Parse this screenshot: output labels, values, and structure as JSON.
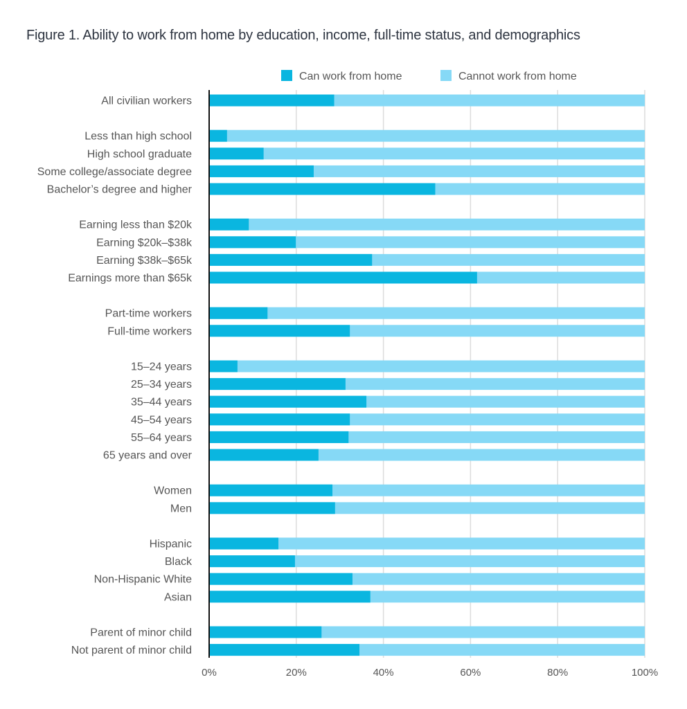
{
  "chart_data": {
    "type": "bar",
    "stacked": true,
    "orientation": "horizontal",
    "title": "Figure 1. Ability to work from home by education, income, full-time status, and demographics",
    "xlim": [
      0,
      100
    ],
    "xticks": [
      "0%",
      "20%",
      "40%",
      "60%",
      "80%",
      "100%"
    ],
    "grid": true,
    "legend_position": "top",
    "colors": {
      "can": "#0ab6e0",
      "cannot": "#86d9f6"
    },
    "series": [
      {
        "name": "Can work from home"
      },
      {
        "name": "Cannot work from home"
      }
    ],
    "groups": [
      [
        {
          "label": "All civilian workers",
          "value": 28.7
        }
      ],
      [
        {
          "label": "Less than high school",
          "value": 4.1
        },
        {
          "label": "High school graduate",
          "value": 12.5
        },
        {
          "label": "Some college/associate degree",
          "value": 24.0
        },
        {
          "label": "Bachelor’s degree and higher",
          "value": 51.9
        }
      ],
      [
        {
          "label": "Earning less than $20k",
          "value": 9.1
        },
        {
          "label": "Earning $20k–$38k",
          "value": 19.9
        },
        {
          "label": "Earning $38k–$65k",
          "value": 37.4
        },
        {
          "label": "Earnings more than $65k",
          "value": 61.5
        }
      ],
      [
        {
          "label": "Part-time workers",
          "value": 13.4
        },
        {
          "label": "Full-time workers",
          "value": 32.3
        }
      ],
      [
        {
          "label": "15–24 years",
          "value": 6.5
        },
        {
          "label": "25–34 years",
          "value": 31.3
        },
        {
          "label": "35–44 years",
          "value": 36.1
        },
        {
          "label": "45–54 years",
          "value": 32.3
        },
        {
          "label": "55–64 years",
          "value": 32.0
        },
        {
          "label": "65 years and over",
          "value": 25.1
        }
      ],
      [
        {
          "label": "Women",
          "value": 28.3
        },
        {
          "label": "Men",
          "value": 28.9
        }
      ],
      [
        {
          "label": "Hispanic",
          "value": 15.9
        },
        {
          "label": "Black",
          "value": 19.7
        },
        {
          "label": "Non-Hispanic White",
          "value": 32.9
        },
        {
          "label": "Asian",
          "value": 37.0
        }
      ],
      [
        {
          "label": "Parent of minor child",
          "value": 25.8
        },
        {
          "label": "Not parent of minor child",
          "value": 34.5
        }
      ]
    ]
  }
}
